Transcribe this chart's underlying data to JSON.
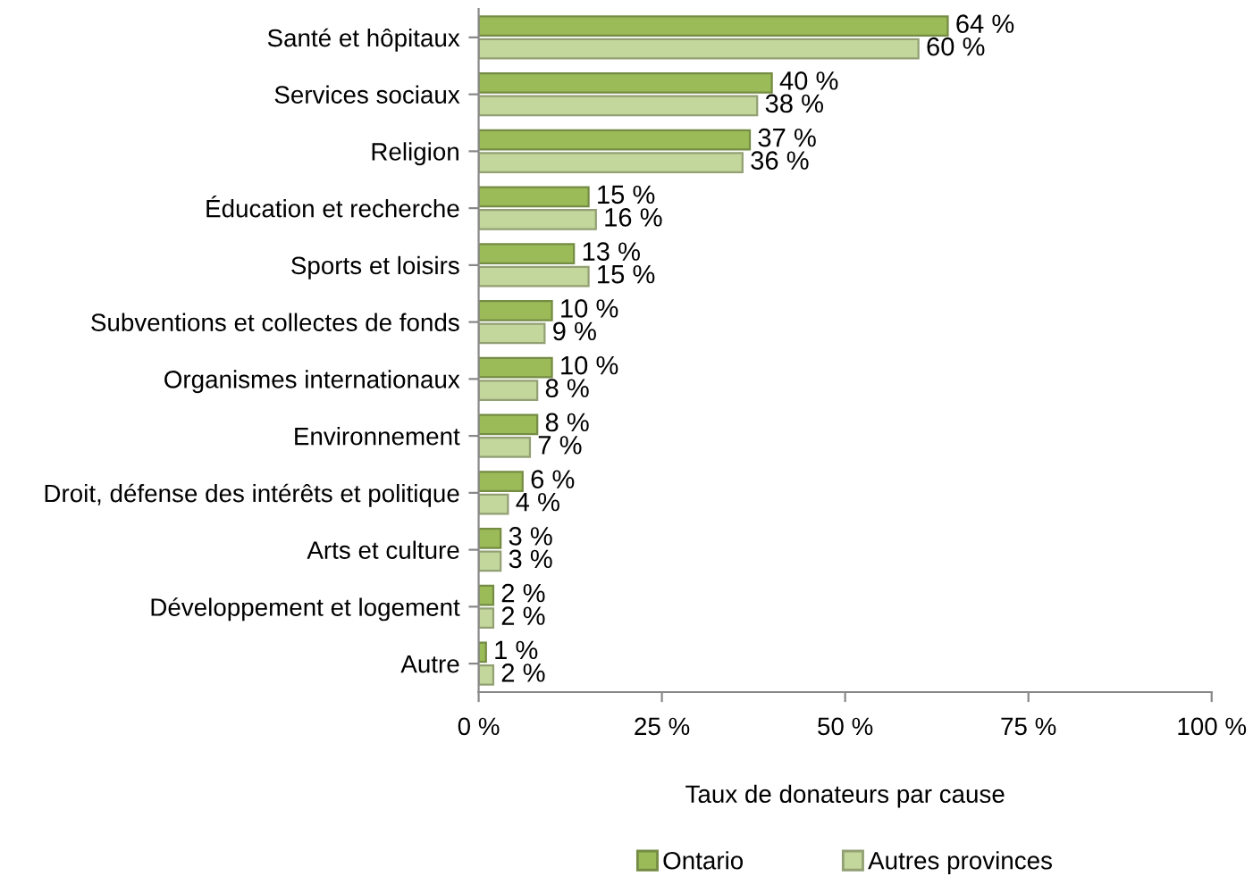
{
  "chart_data": {
    "type": "bar",
    "orientation": "horizontal",
    "xlabel": "Taux de donateurs par cause",
    "categories": [
      "Santé et hôpitaux",
      "Services sociaux",
      "Religion",
      "Éducation et recherche",
      "Sports et loisirs",
      "Subventions et collectes de fonds",
      "Organismes internationaux",
      "Environnement",
      "Droit, défense des intérêts et politique",
      "Arts et culture",
      "Développement et logement",
      "Autre"
    ],
    "series": [
      {
        "name": "Ontario",
        "color": "#9bbb59",
        "values": [
          64,
          40,
          37,
          15,
          13,
          10,
          10,
          8,
          6,
          3,
          2,
          1
        ],
        "value_labels": [
          "64 %",
          "40 %",
          "37 %",
          "15 %",
          "13 %",
          "10 %",
          "10 %",
          "8 %",
          "6 %",
          "3 %",
          "2 %",
          "1 %"
        ]
      },
      {
        "name": "Autres provinces",
        "color": "#c3d69b",
        "values": [
          60,
          38,
          36,
          16,
          15,
          9,
          8,
          7,
          4,
          3,
          2,
          2
        ],
        "value_labels": [
          "60 %",
          "38 %",
          "36 %",
          "16 %",
          "15 %",
          "9 %",
          "8 %",
          "7 %",
          "4 %",
          "3 %",
          "2 %",
          "2 %"
        ]
      }
    ],
    "xlim": [
      0,
      100
    ],
    "xticks": [
      {
        "value": 0,
        "label": "0 %"
      },
      {
        "value": 25,
        "label": "25 %"
      },
      {
        "value": 50,
        "label": "50 %"
      },
      {
        "value": 75,
        "label": "75 %"
      },
      {
        "value": 100,
        "label": "100 %"
      }
    ],
    "grid": false,
    "legend": "bottom"
  }
}
